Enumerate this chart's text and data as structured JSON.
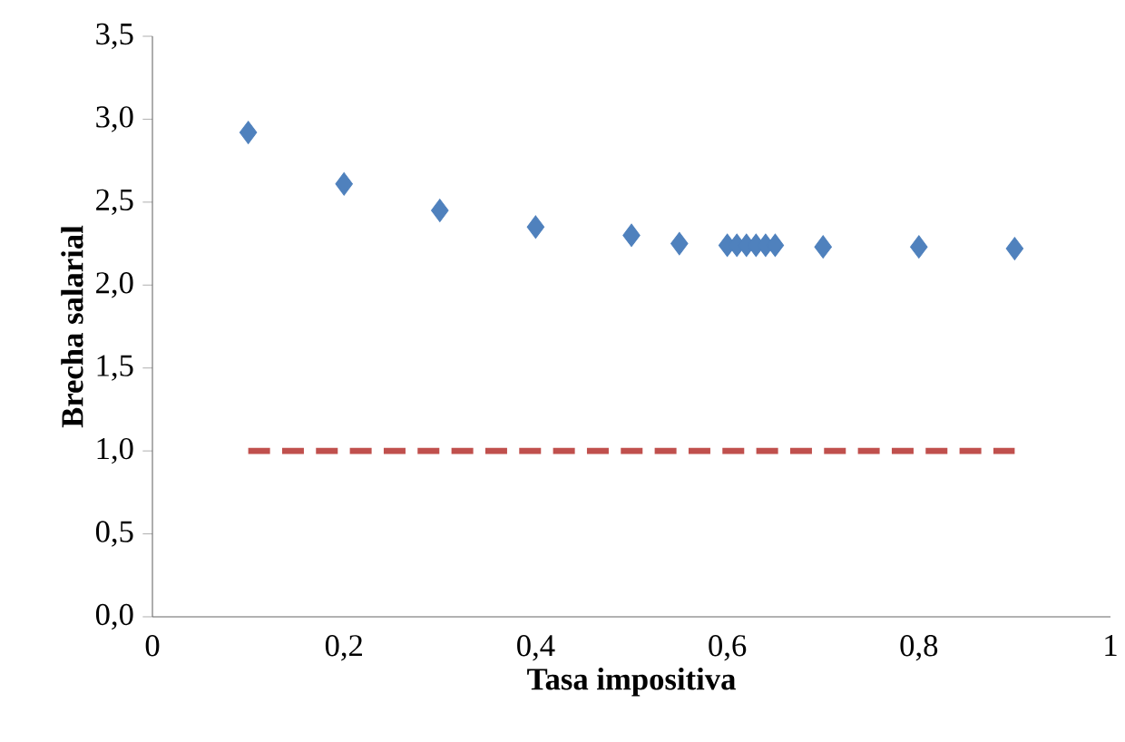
{
  "chart_data": {
    "type": "scatter",
    "xlabel": "Tasa impositiva",
    "ylabel": "Brecha salarial",
    "xlim": [
      0,
      1
    ],
    "xticks": [
      0,
      {
        "value": 0.2,
        "label": "0,2"
      },
      {
        "value": 0.4,
        "label": "0,4"
      },
      {
        "value": 0.6,
        "label": "0,6"
      },
      {
        "value": 0.8,
        "label": "0,8"
      },
      1
    ],
    "ylim": [
      0,
      3.5
    ],
    "yticks": [
      {
        "value": 0,
        "label": "0,0"
      },
      {
        "value": 0.5,
        "label": "0,5"
      },
      {
        "value": 1,
        "label": "1,0"
      },
      {
        "value": 1.5,
        "label": "1,5"
      },
      {
        "value": 2,
        "label": "2,0"
      },
      {
        "value": 2.5,
        "label": "2,5"
      },
      {
        "value": 3,
        "label": "3,0"
      },
      {
        "value": 3.5,
        "label": "3,5"
      }
    ],
    "series": [
      {
        "marker": "diamond",
        "color": "#4f81bd",
        "x": [
          0.1,
          0.2,
          0.3,
          0.4,
          0.5,
          0.55,
          0.6,
          0.61,
          0.62,
          0.63,
          0.64,
          0.65,
          0.7,
          0.8,
          0.9
        ],
        "values": [
          2.92,
          2.61,
          2.45,
          2.35,
          2.3,
          2.25,
          2.24,
          2.24,
          2.24,
          2.24,
          2.24,
          2.24,
          2.23,
          2.23,
          2.22
        ]
      },
      {
        "type": "line",
        "line_style": "dashed",
        "marker": "none",
        "color": "#c0504d",
        "x": [
          0.1,
          0.9
        ],
        "values": [
          1,
          1
        ]
      }
    ]
  }
}
